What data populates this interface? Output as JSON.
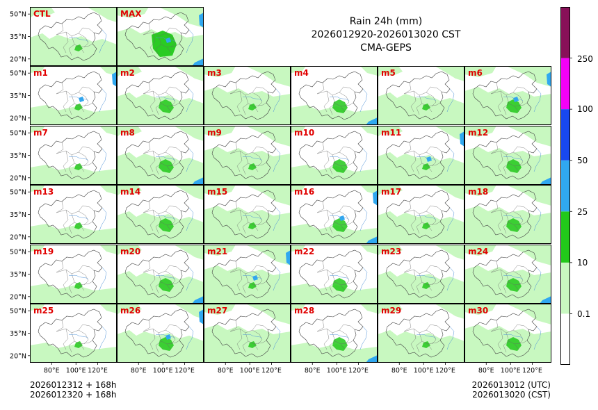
{
  "title": {
    "line1": "Rain 24h (mm)",
    "line2": "2026012920-2026013020 CST",
    "line3": "CMA-GEPS"
  },
  "footer": {
    "left_line1": "2026012312 + 168h",
    "left_line2": "2026012320 + 168h",
    "right_line1": "2026013012 (UTC)",
    "right_line2": "2026013020 (CST)"
  },
  "axes": {
    "lat_labels": [
      "50°N",
      "35°N",
      "20°N"
    ],
    "lon_labels": [
      "80°E",
      "100°E",
      "120°E"
    ]
  },
  "panels": {
    "top_row": [
      "CTL",
      "MAX"
    ],
    "members": [
      "m1",
      "m2",
      "m3",
      "m4",
      "m5",
      "m6",
      "m7",
      "m8",
      "m9",
      "m10",
      "m11",
      "m12",
      "m13",
      "m14",
      "m15",
      "m16",
      "m17",
      "m18",
      "m19",
      "m20",
      "m21",
      "m22",
      "m23",
      "m24",
      "m25",
      "m26",
      "m27",
      "m28",
      "m29",
      "m30"
    ]
  },
  "colorbar": {
    "thresholds": [
      "0.1",
      "10",
      "25",
      "50",
      "100",
      "250"
    ],
    "colors": [
      "#ffffff",
      "#c8f8c0",
      "#22c81a",
      "#30a8f0",
      "#1848f0",
      "#f400f8",
      "#881058"
    ]
  },
  "style": {
    "label_color": "#e00000",
    "frame_color": "#000000",
    "border_color": "#444444"
  }
}
